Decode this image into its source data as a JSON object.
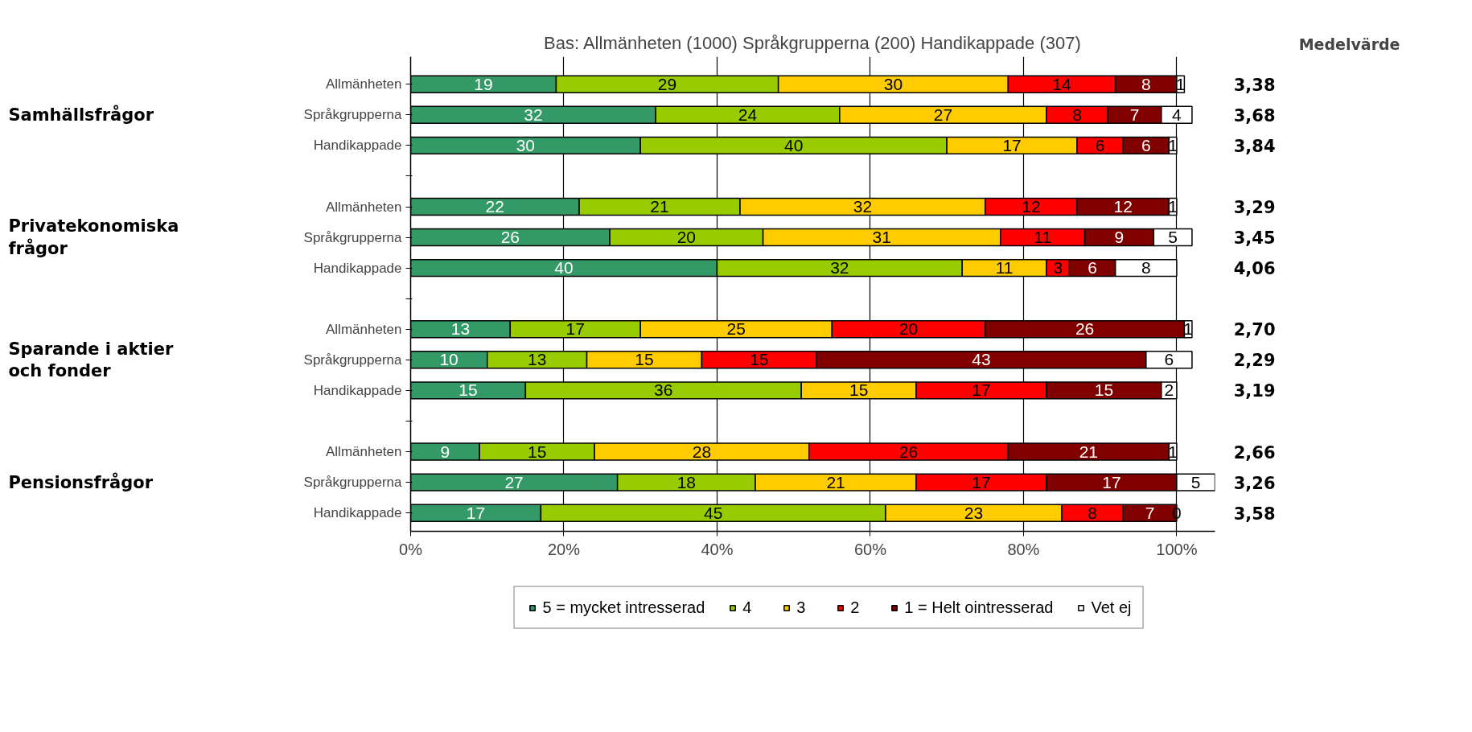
{
  "chart_data": {
    "type": "bar",
    "orientation": "horizontal",
    "stacked": true,
    "title": "Bas: Allmänheten (1000) Språkgrupperna (200) Handikappade (307)",
    "categories": [
      "Allmänheten",
      "Språkgrupperna",
      "Handikappade",
      null,
      "Allmänheten",
      "Språkgrupperna",
      "Handikappade",
      null,
      "Allmänheten",
      "Språkgrupperna",
      "Handikappade",
      null,
      "Allmänheten",
      "Språkgrupperna",
      "Handikappade"
    ],
    "series": [
      {
        "name": "5 = mycket intresserad",
        "color": "#339966",
        "values": [
          19,
          32,
          30,
          null,
          22,
          26,
          40,
          null,
          13,
          10,
          15,
          null,
          9,
          27,
          17
        ]
      },
      {
        "name": "4",
        "color": "#99cc00",
        "values": [
          29,
          24,
          40,
          null,
          21,
          20,
          32,
          null,
          17,
          13,
          36,
          null,
          15,
          18,
          45
        ]
      },
      {
        "name": "3",
        "color": "#ffcc00",
        "values": [
          30,
          27,
          17,
          null,
          32,
          31,
          11,
          null,
          25,
          15,
          15,
          null,
          28,
          21,
          23
        ]
      },
      {
        "name": "2",
        "color": "#ff0000",
        "values": [
          14,
          8,
          6,
          null,
          12,
          11,
          3,
          null,
          20,
          15,
          17,
          null,
          26,
          17,
          8
        ]
      },
      {
        "name": "1 = Helt ointresserad",
        "color": "#800000",
        "values": [
          8,
          7,
          6,
          null,
          12,
          9,
          6,
          null,
          26,
          43,
          15,
          null,
          21,
          17,
          7
        ]
      },
      {
        "name": "Vet ej",
        "color": "#ffffff",
        "values": [
          1,
          4,
          1,
          null,
          1,
          5,
          8,
          null,
          1,
          6,
          2,
          null,
          1,
          5,
          0
        ]
      }
    ],
    "xlim": [
      0,
      105
    ],
    "xticks": [
      {
        "value": 0,
        "label": "0%"
      },
      {
        "value": 20,
        "label": "20%"
      },
      {
        "value": 40,
        "label": "40%"
      },
      {
        "value": 60,
        "label": "60%"
      },
      {
        "value": 80,
        "label": "80%"
      },
      {
        "value": 100,
        "label": "100%"
      }
    ],
    "data_labels": true,
    "grid": "x",
    "legend": "bottom",
    "annotations": [
      "Medelvärde",
      "Samhällsfrågor",
      "Privatekonomiska frågor",
      "Sparande i aktier och fonder",
      "Pensionsfrågor",
      "3,38",
      "3,68",
      "3,84",
      "3,29",
      "3,45",
      "4,06",
      "2,70",
      "2,29",
      "3,19",
      "2,66",
      "3,26",
      "3,58"
    ]
  }
}
